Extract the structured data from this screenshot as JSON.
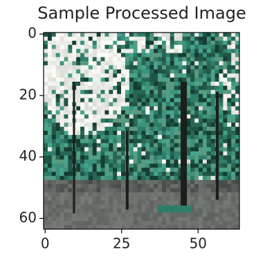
{
  "chart_data": {
    "type": "image",
    "title": "Sample Processed Image",
    "xlim": [
      -0.5,
      63.5
    ],
    "ylim": [
      63.5,
      -0.5
    ],
    "xticks": [
      0,
      25,
      50
    ],
    "yticks": [
      0,
      20,
      40,
      60
    ]
  }
}
